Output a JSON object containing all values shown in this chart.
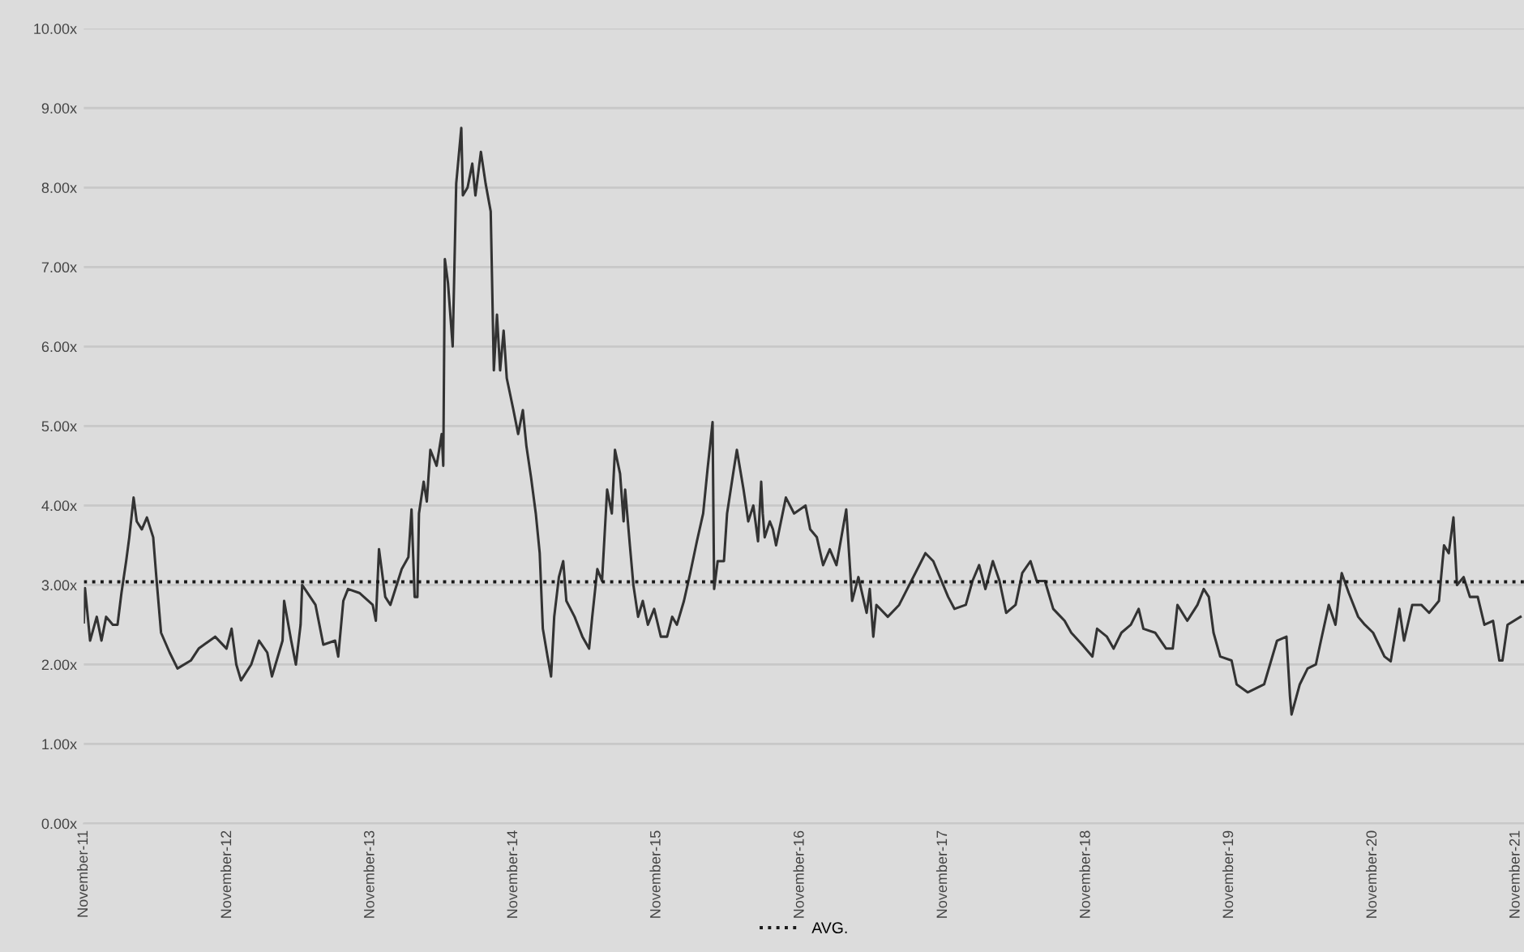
{
  "chart_data": {
    "type": "line",
    "x": [
      "2011-11-01",
      "2011-11-04",
      "2011-11-17",
      "2011-12-04",
      "2011-12-16",
      "2011-12-28",
      "2012-01-14",
      "2012-01-26",
      "2012-02-05",
      "2012-02-17",
      "2012-02-25",
      "2012-03-07",
      "2012-03-15",
      "2012-03-28",
      "2012-04-10",
      "2012-04-26",
      "2012-05-04",
      "2012-05-16",
      "2012-06-07",
      "2012-06-27",
      "2012-07-31",
      "2012-08-20",
      "2012-10-01",
      "2012-10-30",
      "2012-11-12",
      "2012-11-24",
      "2012-12-06",
      "2013-01-01",
      "2013-01-21",
      "2013-02-11",
      "2013-02-23",
      "2013-03-22",
      "2013-03-26",
      "2013-04-13",
      "2013-04-25",
      "2013-05-07",
      "2013-05-11",
      "2013-06-14",
      "2013-07-04",
      "2013-08-03",
      "2013-08-11",
      "2013-08-24",
      "2013-09-05",
      "2013-10-04",
      "2013-11-07",
      "2013-11-15",
      "2013-11-23",
      "2013-12-09",
      "2013-12-22",
      "2014-01-20",
      "2014-02-06",
      "2014-02-14",
      "2014-02-22",
      "2014-03-01",
      "2014-03-05",
      "2014-03-17",
      "2014-03-25",
      "2014-04-03",
      "2014-04-19",
      "2014-05-02",
      "2014-05-06",
      "2014-05-10",
      "2014-05-18",
      "2014-05-30",
      "2014-06-08",
      "2014-06-21",
      "2014-06-25",
      "2014-07-07",
      "2014-07-19",
      "2014-07-27",
      "2014-08-10",
      "2014-08-22",
      "2014-09-04",
      "2014-09-12",
      "2014-09-20",
      "2014-09-28",
      "2014-10-07",
      "2014-10-15",
      "2014-11-01",
      "2014-11-13",
      "2014-11-25",
      "2014-12-04",
      "2014-12-16",
      "2014-12-28",
      "2015-01-07",
      "2015-01-15",
      "2015-01-27",
      "2015-02-05",
      "2015-02-13",
      "2015-02-25",
      "2015-03-08",
      "2015-03-16",
      "2015-04-06",
      "2015-04-26",
      "2015-05-13",
      "2015-05-21",
      "2015-06-03",
      "2015-06-15",
      "2015-06-28",
      "2015-07-10",
      "2015-07-18",
      "2015-07-31",
      "2015-08-09",
      "2015-08-13",
      "2015-08-25",
      "2015-09-03",
      "2015-09-15",
      "2015-09-27",
      "2015-10-10",
      "2015-10-26",
      "2015-11-12",
      "2015-11-28",
      "2015-12-11",
      "2015-12-23",
      "2016-01-10",
      "2016-01-26",
      "2016-02-12",
      "2016-02-28",
      "2016-03-10",
      "2016-03-23",
      "2016-03-27",
      "2016-04-05",
      "2016-04-21",
      "2016-04-29",
      "2016-05-16",
      "2016-05-24",
      "2016-06-10",
      "2016-06-22",
      "2016-07-05",
      "2016-07-17",
      "2016-07-25",
      "2016-07-29",
      "2016-08-03",
      "2016-08-16",
      "2016-08-24",
      "2016-09-01",
      "2016-09-26",
      "2016-10-17",
      "2016-11-15",
      "2016-11-27",
      "2016-12-14",
      "2016-12-30",
      "2017-01-16",
      "2017-02-02",
      "2017-02-27",
      "2017-03-14",
      "2017-03-30",
      "2017-04-20",
      "2017-04-28",
      "2017-05-07",
      "2017-05-15",
      "2017-06-13",
      "2017-07-12",
      "2017-09-17",
      "2017-10-07",
      "2017-11-14",
      "2017-11-30",
      "2017-12-29",
      "2018-01-15",
      "2018-02-01",
      "2018-02-17",
      "2018-03-08",
      "2018-03-25",
      "2018-04-11",
      "2018-05-05",
      "2018-05-22",
      "2018-06-12",
      "2018-06-28",
      "2018-07-19",
      "2018-08-09",
      "2018-09-07",
      "2018-09-24",
      "2018-10-22",
      "2018-11-17",
      "2018-11-29",
      "2018-12-24",
      "2019-01-10",
      "2019-01-30",
      "2019-02-23",
      "2019-03-15",
      "2019-03-27",
      "2019-04-26",
      "2019-05-24",
      "2019-06-10",
      "2019-06-22",
      "2019-07-17",
      "2019-08-12",
      "2019-08-28",
      "2019-09-10",
      "2019-09-22",
      "2019-10-09",
      "2019-11-07",
      "2019-11-20",
      "2019-12-18",
      "2020-01-29",
      "2020-03-02",
      "2020-03-26",
      "2020-04-04",
      "2020-04-08",
      "2020-04-29",
      "2020-05-19",
      "2020-06-09",
      "2020-06-22",
      "2020-07-12",
      "2020-07-29",
      "2020-08-14",
      "2020-09-01",
      "2020-09-25",
      "2020-10-12",
      "2020-11-02",
      "2020-12-01",
      "2020-12-17",
      "2021-01-08",
      "2021-01-20",
      "2021-02-10",
      "2021-03-05",
      "2021-03-25",
      "2021-04-19",
      "2021-05-02",
      "2021-05-14",
      "2021-05-26",
      "2021-06-04",
      "2021-06-21",
      "2021-07-07",
      "2021-07-27",
      "2021-08-13",
      "2021-09-04",
      "2021-09-20",
      "2021-09-28",
      "2021-10-11",
      "2021-11-13"
    ],
    "series": [
      {
        "color": "#333333",
        "values": [
          2.53,
          2.96,
          2.3,
          2.6,
          2.3,
          2.6,
          2.5,
          2.5,
          2.9,
          3.3,
          3.6,
          4.1,
          3.8,
          3.7,
          3.85,
          3.6,
          3.1,
          2.4,
          2.15,
          1.95,
          2.05,
          2.2,
          2.35,
          2.2,
          2.45,
          2.0,
          1.8,
          2.0,
          2.3,
          2.15,
          1.85,
          2.3,
          2.8,
          2.3,
          2.0,
          2.5,
          3.0,
          2.75,
          2.25,
          2.3,
          2.1,
          2.8,
          2.95,
          2.9,
          2.75,
          2.55,
          3.45,
          2.85,
          2.75,
          3.2,
          3.35,
          3.95,
          2.85,
          2.85,
          3.9,
          4.3,
          4.05,
          4.7,
          4.5,
          4.9,
          4.5,
          7.1,
          6.8,
          6.0,
          8.05,
          8.75,
          7.9,
          8.0,
          8.3,
          7.9,
          8.45,
          8.05,
          7.7,
          5.7,
          6.4,
          5.7,
          6.2,
          5.6,
          5.2,
          4.9,
          5.2,
          4.75,
          4.35,
          3.9,
          3.4,
          2.45,
          2.1,
          1.85,
          2.6,
          3.1,
          3.3,
          2.8,
          2.6,
          2.35,
          2.2,
          2.6,
          3.2,
          3.05,
          4.2,
          3.9,
          4.7,
          4.4,
          3.8,
          4.2,
          3.5,
          3.0,
          2.6,
          2.8,
          2.5,
          2.7,
          2.35,
          2.35,
          2.6,
          2.5,
          2.8,
          3.15,
          3.55,
          3.9,
          4.45,
          5.05,
          2.95,
          3.3,
          3.3,
          3.9,
          4.45,
          4.7,
          4.2,
          3.8,
          4.0,
          3.55,
          4.3,
          3.9,
          3.6,
          3.8,
          3.7,
          3.5,
          4.1,
          3.9,
          4.0,
          3.7,
          3.6,
          3.25,
          3.45,
          3.25,
          3.95,
          2.8,
          3.1,
          2.65,
          2.95,
          2.35,
          2.75,
          2.6,
          2.75,
          3.4,
          3.3,
          2.85,
          2.7,
          2.75,
          3.05,
          3.25,
          2.95,
          3.3,
          3.05,
          2.65,
          2.75,
          3.15,
          3.3,
          3.05,
          3.05,
          2.7,
          2.55,
          2.4,
          2.25,
          2.1,
          2.45,
          2.35,
          2.2,
          2.4,
          2.5,
          2.7,
          2.45,
          2.4,
          2.2,
          2.2,
          2.75,
          2.55,
          2.75,
          2.95,
          2.85,
          2.4,
          2.1,
          2.05,
          1.75,
          1.65,
          1.75,
          2.3,
          2.35,
          1.6,
          1.37,
          1.75,
          1.95,
          2.0,
          2.3,
          2.75,
          2.5,
          3.15,
          2.9,
          2.6,
          2.5,
          2.4,
          2.1,
          2.04,
          2.7,
          2.3,
          2.75,
          2.75,
          2.65,
          2.8,
          3.5,
          3.4,
          3.85,
          3.0,
          3.1,
          2.85,
          2.85,
          2.5,
          2.55,
          2.05,
          2.05,
          2.5,
          2.6
        ]
      }
    ],
    "xlim": [
      "2011-11-01",
      "2021-11-22"
    ],
    "xticks": [
      {
        "value": "2011-11-01",
        "label": "November-11"
      },
      {
        "value": "2012-11-01",
        "label": "November-12"
      },
      {
        "value": "2013-11-01",
        "label": "November-13"
      },
      {
        "value": "2014-11-01",
        "label": "November-14"
      },
      {
        "value": "2015-11-01",
        "label": "November-15"
      },
      {
        "value": "2016-11-01",
        "label": "November-16"
      },
      {
        "value": "2017-11-01",
        "label": "November-17"
      },
      {
        "value": "2018-11-01",
        "label": "November-18"
      },
      {
        "value": "2019-11-01",
        "label": "November-19"
      },
      {
        "value": "2020-11-01",
        "label": "November-20"
      },
      {
        "value": "2021-11-01",
        "label": "November-21"
      }
    ],
    "ylim": [
      0,
      10
    ],
    "yticks": [
      {
        "value": 0,
        "label": "0.00x"
      },
      {
        "value": 1,
        "label": "1.00x"
      },
      {
        "value": 2,
        "label": "2.00x"
      },
      {
        "value": 3,
        "label": "3.00x"
      },
      {
        "value": 4,
        "label": "4.00x"
      },
      {
        "value": 5,
        "label": "5.00x"
      },
      {
        "value": 6,
        "label": "6.00x"
      },
      {
        "value": 7,
        "label": "7.00x"
      },
      {
        "value": 8,
        "label": "8.00x"
      },
      {
        "value": 9,
        "label": "9.00x"
      },
      {
        "value": 10,
        "label": "10.00x"
      }
    ],
    "ref_lines": [
      {
        "axis": "y",
        "value": 3.04,
        "label": "AVG.",
        "color": "#1a1a1a",
        "line_style": "dotted"
      }
    ],
    "grid": "y",
    "legend": "bottom",
    "line_style": "solid",
    "marker": "none"
  }
}
